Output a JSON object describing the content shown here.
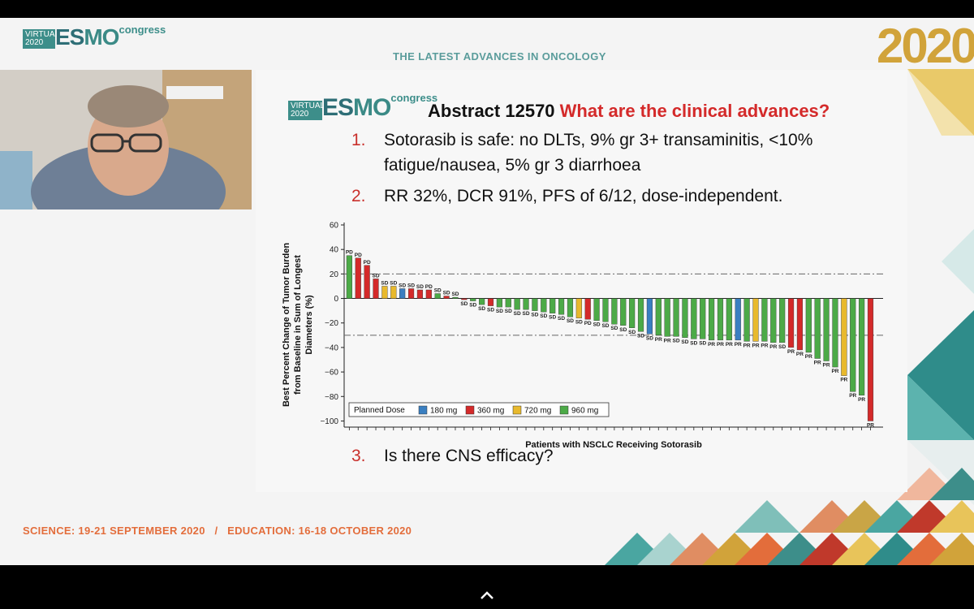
{
  "header": {
    "logo_virtual": "VIRTUAL\n2020",
    "logo_es": "ES",
    "logo_mo": "MO",
    "logo_congress": "congress",
    "tagline": "THE LATEST ADVANCES IN ONCOLOGY",
    "year": "2020"
  },
  "slide": {
    "logo_virtual": "VIRTUAL\n2020",
    "logo_es": "ES",
    "logo_mo": "MO",
    "logo_congress": "congress",
    "title_prefix": "Abstract 12570 ",
    "title_question": "What are the clinical advances?",
    "points": [
      {
        "num": "1.",
        "line1": "Sotorasib is safe: no DLTs, 9% gr 3+ transaminitis, <10%",
        "line2": "fatigue/nausea, 5% gr 3 diarrhoea"
      },
      {
        "num": "2.",
        "line1": "RR 32%, DCR 91%, PFS of 6/12, dose-independent."
      },
      {
        "num": "3.",
        "line1": "Is there CNS efficacy?"
      }
    ]
  },
  "footer": {
    "text": "SCIENCE: 19-21 SEPTEMBER 2020   /   EDUCATION: 16-18 OCTOBER 2020"
  },
  "colors": {
    "dose_180": "#3a7fc1",
    "dose_360": "#d42a2a",
    "dose_720": "#e8b92d",
    "dose_960": "#4caa47",
    "accent_red": "#d42a2a",
    "teal": "#3d8e8a",
    "orange": "#e36d3b"
  },
  "icons": {
    "expand": "chevron-up-icon"
  },
  "chart_data": {
    "type": "bar",
    "xlabel": "Patients with NSCLC Receiving Sotorasib",
    "ylabel": "Best Percent Change of Tumor Burden from Baseline in Sum of Longest Diameters (%)",
    "ylim": [
      -105,
      62
    ],
    "yticks": [
      60,
      40,
      20,
      0,
      -20,
      -40,
      -60,
      -80,
      -100
    ],
    "reference_lines": [
      20,
      -30
    ],
    "legend": {
      "title": "Planned Dose",
      "placement": "bottom-left",
      "items": [
        {
          "label": "180 mg",
          "dose": "180"
        },
        {
          "label": "360 mg",
          "dose": "360"
        },
        {
          "label": "720 mg",
          "dose": "720"
        },
        {
          "label": "960 mg",
          "dose": "960"
        }
      ]
    },
    "bars": [
      {
        "v": 35,
        "d": "960",
        "l": "PD"
      },
      {
        "v": 33,
        "d": "360",
        "l": "PD"
      },
      {
        "v": 27,
        "d": "360",
        "l": "PD"
      },
      {
        "v": 16,
        "d": "360",
        "l": "SD"
      },
      {
        "v": 10,
        "d": "720",
        "l": "SD"
      },
      {
        "v": 10,
        "d": "720",
        "l": "SD"
      },
      {
        "v": 8,
        "d": "180",
        "l": "SD"
      },
      {
        "v": 8,
        "d": "360",
        "l": "SD"
      },
      {
        "v": 7,
        "d": "360",
        "l": "SD"
      },
      {
        "v": 7,
        "d": "360",
        "l": "PD"
      },
      {
        "v": 4,
        "d": "960",
        "l": "SD"
      },
      {
        "v": 2,
        "d": "360",
        "l": "SD"
      },
      {
        "v": 1,
        "d": "960",
        "l": "SD"
      },
      {
        "v": -1,
        "d": "360",
        "l": "SD"
      },
      {
        "v": -2,
        "d": "960",
        "l": "SD"
      },
      {
        "v": -5,
        "d": "960",
        "l": "SD"
      },
      {
        "v": -6,
        "d": "360",
        "l": "SD"
      },
      {
        "v": -7,
        "d": "960",
        "l": "SD"
      },
      {
        "v": -7,
        "d": "960",
        "l": "SD"
      },
      {
        "v": -9,
        "d": "960",
        "l": "SD"
      },
      {
        "v": -9,
        "d": "960",
        "l": "SD"
      },
      {
        "v": -10,
        "d": "960",
        "l": "SD"
      },
      {
        "v": -11,
        "d": "960",
        "l": "SD"
      },
      {
        "v": -12,
        "d": "960",
        "l": "SD"
      },
      {
        "v": -13,
        "d": "960",
        "l": "SD"
      },
      {
        "v": -15,
        "d": "960",
        "l": "SD"
      },
      {
        "v": -16,
        "d": "720",
        "l": "SD"
      },
      {
        "v": -17,
        "d": "360",
        "l": "PD"
      },
      {
        "v": -18,
        "d": "960",
        "l": "SD"
      },
      {
        "v": -19,
        "d": "960",
        "l": "SD"
      },
      {
        "v": -21,
        "d": "960",
        "l": "SD"
      },
      {
        "v": -22,
        "d": "960",
        "l": "SD"
      },
      {
        "v": -24,
        "d": "960",
        "l": "SD"
      },
      {
        "v": -27,
        "d": "960",
        "l": "SD"
      },
      {
        "v": -29,
        "d": "180",
        "l": "SD"
      },
      {
        "v": -30,
        "d": "960",
        "l": "PR"
      },
      {
        "v": -31,
        "d": "960",
        "l": "PR"
      },
      {
        "v": -31,
        "d": "960",
        "l": "SD"
      },
      {
        "v": -32,
        "d": "960",
        "l": "SD"
      },
      {
        "v": -33,
        "d": "960",
        "l": "SD"
      },
      {
        "v": -33,
        "d": "960",
        "l": "SD"
      },
      {
        "v": -34,
        "d": "960",
        "l": "PR"
      },
      {
        "v": -34,
        "d": "960",
        "l": "PR"
      },
      {
        "v": -34,
        "d": "960",
        "l": "PR"
      },
      {
        "v": -34,
        "d": "180",
        "l": "PR"
      },
      {
        "v": -35,
        "d": "960",
        "l": "PR"
      },
      {
        "v": -35,
        "d": "720",
        "l": "PR"
      },
      {
        "v": -35,
        "d": "960",
        "l": "PR"
      },
      {
        "v": -36,
        "d": "960",
        "l": "PR"
      },
      {
        "v": -36,
        "d": "960",
        "l": "SD"
      },
      {
        "v": -40,
        "d": "360",
        "l": "PR"
      },
      {
        "v": -42,
        "d": "360",
        "l": "PR"
      },
      {
        "v": -44,
        "d": "960",
        "l": "PR"
      },
      {
        "v": -49,
        "d": "960",
        "l": "PR"
      },
      {
        "v": -51,
        "d": "960",
        "l": "PR"
      },
      {
        "v": -56,
        "d": "960",
        "l": "PR"
      },
      {
        "v": -63,
        "d": "720",
        "l": "PR"
      },
      {
        "v": -76,
        "d": "960",
        "l": "PR"
      },
      {
        "v": -79,
        "d": "960",
        "l": "PR"
      },
      {
        "v": -100,
        "d": "360",
        "l": "PR"
      }
    ]
  }
}
